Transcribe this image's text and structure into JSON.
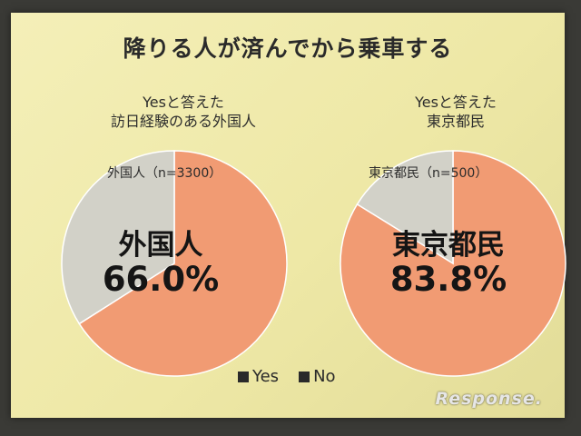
{
  "colors": {
    "yes": "#f19b73",
    "no": "#d2d1c8",
    "slide_bg": "#f1ecb0"
  },
  "chart_data": [
    {
      "type": "pie",
      "title": "降りる人が済んでから乗車する",
      "subtitle": [
        "Yesと答えた",
        "訪日経験のある外国人"
      ],
      "sample_label": "外国人（n=3300）",
      "center_label": "外国人",
      "center_value": "66.0%",
      "slices": [
        {
          "name": "Yes",
          "value": 66.0
        },
        {
          "name": "No",
          "value": 34.0
        }
      ],
      "legend": [
        "Yes",
        "No"
      ]
    },
    {
      "type": "pie",
      "title": "降りる人が済んでから乗車する",
      "subtitle": [
        "Yesと答えた",
        "東京都民"
      ],
      "sample_label": "東京都民（n=500）",
      "center_label": "東京都民",
      "center_value": "83.8%",
      "slices": [
        {
          "name": "Yes",
          "value": 83.8
        },
        {
          "name": "No",
          "value": 16.2
        }
      ],
      "legend": [
        "Yes",
        "No"
      ]
    }
  ],
  "slide": {
    "title": "降りる人が済んでから乗車する",
    "left": {
      "subtitle_line1": "Yesと答えた",
      "subtitle_line2": "訪日経験のある外国人",
      "sample_label": "外国人（n=3300）",
      "center_label": "外国人",
      "center_value": "66.0%"
    },
    "right": {
      "subtitle_line1": "Yesと答えた",
      "subtitle_line2": "東京都民",
      "sample_label": "東京都民（n=500）",
      "center_label": "東京都民",
      "center_value": "83.8%"
    },
    "legend": {
      "yes": "Yes",
      "no": "No"
    }
  },
  "watermark": "Response."
}
